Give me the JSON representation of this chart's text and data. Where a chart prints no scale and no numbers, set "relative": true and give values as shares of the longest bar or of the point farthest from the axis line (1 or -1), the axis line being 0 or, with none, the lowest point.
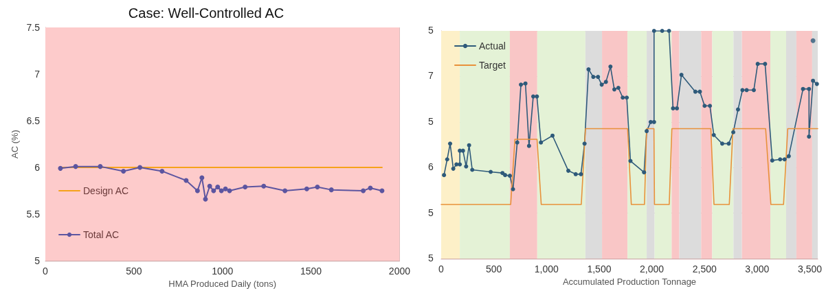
{
  "chart_data": [
    {
      "type": "line",
      "title": "Case: Well-Controlled AC",
      "xlabel": "HMA Produced Daily (tons)",
      "ylabel": "AC (%)",
      "xlim": [
        0,
        2000
      ],
      "xticks": [
        0,
        500,
        1000,
        1500,
        2000
      ],
      "ylim": [
        5,
        7.5
      ],
      "yticks": [
        5,
        5.5,
        6,
        6.5,
        7,
        7.5
      ],
      "grid": true,
      "legend": "bottom left",
      "bands": [
        {
          "axis": "y",
          "from": 5,
          "to": 7.5,
          "color": "#fdcbcb"
        }
      ],
      "series": [
        {
          "name": "Design AC",
          "color": "#f5a21b",
          "marker": "none",
          "x": [
            85,
            1901
          ],
          "values": [
            6.0,
            6.0
          ]
        },
        {
          "name": "Total AC",
          "color": "#5c55a0",
          "marker": "circle",
          "x": [
            85,
            171,
            310,
            441,
            534,
            659,
            795,
            859,
            884,
            904,
            928,
            950,
            973,
            994,
            1017,
            1040,
            1128,
            1233,
            1353,
            1476,
            1536,
            1615,
            1795,
            1835,
            1901
          ],
          "values": [
            5.99,
            6.01,
            6.01,
            5.96,
            6.0,
            5.96,
            5.86,
            5.75,
            5.89,
            5.66,
            5.8,
            5.75,
            5.79,
            5.75,
            5.77,
            5.75,
            5.79,
            5.8,
            5.75,
            5.77,
            5.79,
            5.76,
            5.75,
            5.78,
            5.75
          ]
        }
      ]
    },
    {
      "type": "line",
      "xlabel": "Accumulated Production Tonnage",
      "relative": true,
      "annotations": [
        "5",
        "7",
        "5",
        "6",
        "5",
        "5"
      ],
      "xlim": [
        0,
        3575
      ],
      "xticks": [
        0,
        500,
        {
          "value": 1000,
          "label": "1,000"
        },
        {
          "value": 1500,
          "label": "1,500"
        },
        {
          "value": 2000,
          "label": "2,000"
        },
        {
          "value": 2500,
          "label": "2,500"
        },
        {
          "value": 3000,
          "label": "3,000"
        },
        {
          "value": 3500,
          "label": "3,500"
        }
      ],
      "grid": true,
      "legend": "top left",
      "bands": [
        {
          "axis": "x",
          "from": 0,
          "to": 177,
          "color": "#fdf0c8"
        },
        {
          "axis": "x",
          "from": 177,
          "to": 652,
          "color": "#e4f2d6"
        },
        {
          "axis": "x",
          "from": 652,
          "to": 912,
          "color": "#f9c6c6"
        },
        {
          "axis": "x",
          "from": 912,
          "to": 1369,
          "color": "#e4f2d6"
        },
        {
          "axis": "x",
          "from": 1369,
          "to": 1527,
          "color": "#dcdcdc"
        },
        {
          "axis": "x",
          "from": 1527,
          "to": 1769,
          "color": "#f9c6c6"
        },
        {
          "axis": "x",
          "from": 1769,
          "to": 1951,
          "color": "#e4f2d6"
        },
        {
          "axis": "x",
          "from": 1951,
          "to": 2026,
          "color": "#dcdcdc"
        },
        {
          "axis": "x",
          "from": 2026,
          "to": 2188,
          "color": "#e4f2d6"
        },
        {
          "axis": "x",
          "from": 2188,
          "to": 2261,
          "color": "#f9c6c6"
        },
        {
          "axis": "x",
          "from": 2261,
          "to": 2468,
          "color": "#dcdcdc"
        },
        {
          "axis": "x",
          "from": 2468,
          "to": 2573,
          "color": "#f9c6c6"
        },
        {
          "axis": "x",
          "from": 2573,
          "to": 2775,
          "color": "#e4f2d6"
        },
        {
          "axis": "x",
          "from": 2775,
          "to": 2855,
          "color": "#dcdcdc"
        },
        {
          "axis": "x",
          "from": 2855,
          "to": 3125,
          "color": "#f9c6c6"
        },
        {
          "axis": "x",
          "from": 3125,
          "to": 3275,
          "color": "#e4f2d6"
        },
        {
          "axis": "x",
          "from": 3275,
          "to": 3372,
          "color": "#dcdcdc"
        },
        {
          "axis": "x",
          "from": 3372,
          "to": 3522,
          "color": "#f9c6c6"
        },
        {
          "axis": "x",
          "from": 3522,
          "to": 3575,
          "color": "#dcdcdc"
        }
      ],
      "series": [
        {
          "name": "Actual",
          "color": "#2e5a7a",
          "marker": "circle",
          "x": [
            27,
            57,
            85,
            115,
            145,
            177,
            177,
            207,
            237,
            265,
            295,
            470,
            582,
            607,
            652,
            682,
            722,
            757,
            800,
            834,
            874,
            909,
            947,
            1057,
            1207,
            1277,
            1327,
            1361,
            1399,
            1444,
            1489,
            1524,
            1564,
            1607,
            1644,
            1682,
            1724,
            1762,
            1797,
            1926,
            1951,
            1989,
            2021,
            2021,
            2098,
            2163,
            2201,
            2238,
            2281,
            2413,
            2456,
            2501,
            2551,
            2588,
            2668,
            2730,
            2773,
            2818,
            2860,
            2900,
            2968,
            3005,
            3075,
            3143,
            3218,
            3260,
            3300,
            3435,
            3492,
            3492,
            3530,
            3567
          ],
          "values": [
            0.367,
            0.436,
            0.505,
            0.395,
            0.414,
            0.414,
            0.474,
            0.474,
            0.405,
            0.498,
            0.39,
            0.381,
            0.376,
            0.367,
            0.364,
            0.305,
            0.51,
            0.764,
            0.769,
            0.495,
            0.712,
            0.712,
            0.51,
            0.54,
            0.386,
            0.371,
            0.371,
            0.505,
            0.831,
            0.798,
            0.798,
            0.764,
            0.776,
            0.843,
            0.743,
            0.75,
            0.707,
            0.707,
            0.429,
            0.379,
            0.56,
            0.6,
            0.6,
            1,
            1,
            1,
            0.66,
            0.66,
            0.807,
            0.733,
            0.733,
            0.671,
            0.671,
            0.543,
            0.505,
            0.505,
            0.555,
            0.655,
            0.74,
            0.74,
            0.74,
            0.855,
            0.855,
            0.431,
            0.436,
            0.436,
            0.45,
            0.745,
            0.745,
            0.536,
            0.781,
            0.767
          ]
        },
        {
          "type": "scatter",
          "color": "#2e5a7a",
          "marker": "circle",
          "x": [
            3530
          ],
          "values": [
            0.957
          ]
        },
        {
          "name": "Target",
          "color": "#e8913a",
          "marker": "none",
          "x": [
            0,
            660,
            700,
            910,
            950,
            1330,
            1370,
            1770,
            1805,
            1930,
            1950,
            2020,
            2025,
            2165,
            2190,
            2560,
            2590,
            2735,
            2770,
            3080,
            3130,
            3250,
            3290,
            3575
          ],
          "values": [
            0.238,
            0.238,
            0.524,
            0.524,
            0.238,
            0.238,
            0.571,
            0.571,
            0.238,
            0.238,
            0.571,
            0.571,
            0.238,
            0.238,
            0.571,
            0.571,
            0.238,
            0.238,
            0.571,
            0.571,
            0.238,
            0.238,
            0.571,
            0.571
          ]
        }
      ]
    }
  ]
}
